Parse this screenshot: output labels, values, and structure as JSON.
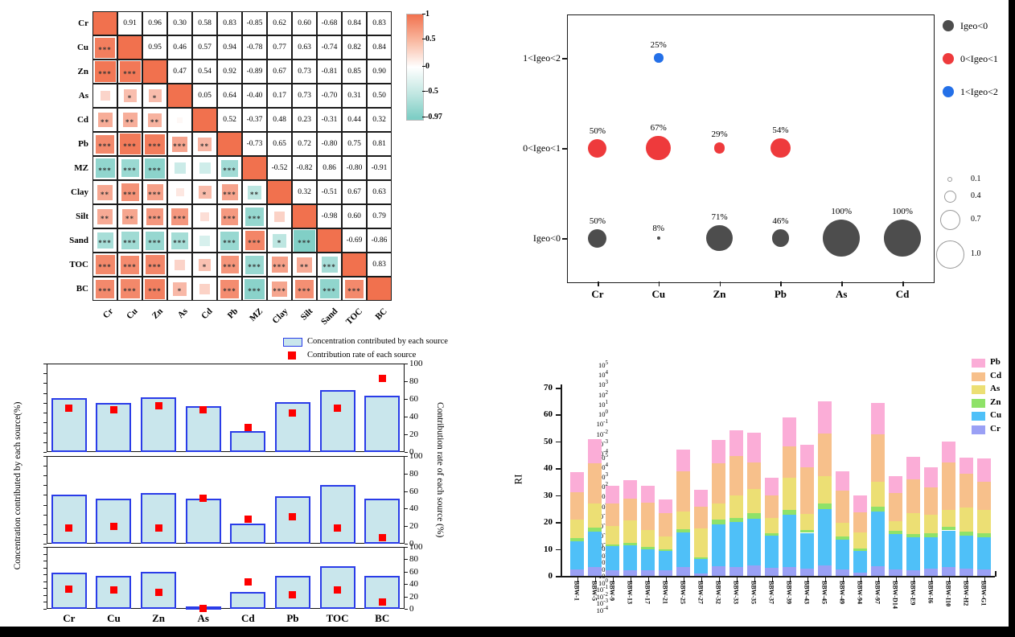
{
  "colors": {
    "positive": "#f1714e",
    "negative": "#7ecec5",
    "grid_line": "#1b1b1b",
    "bubble_gray": "#4d4d4d",
    "bubble_red": "#ee3a3c",
    "bubble_blue": "#2470e8",
    "bar_fill": "#c9e6ec",
    "bar_border": "#2a3ce8",
    "rate_marker": "#fe0000",
    "ri_Cr": "#9aa0f5",
    "ri_Cu": "#4fc0f8",
    "ri_Zn": "#8fe268",
    "ri_As": "#ecdf74",
    "ri_Cd": "#f7c08b",
    "ri_Pb": "#fbadd7"
  },
  "chart_data": [
    {
      "id": "correlation-matrix",
      "type": "heatmap",
      "labels": [
        "Cr",
        "Cu",
        "Zn",
        "As",
        "Cd",
        "Pb",
        "MZ",
        "Clay",
        "Silt",
        "Sand",
        "TOC",
        "BC"
      ],
      "r": [
        [
          1,
          0.91,
          0.96,
          0.3,
          0.58,
          0.83,
          -0.85,
          0.62,
          0.6,
          -0.68,
          0.84,
          0.83
        ],
        [
          0.91,
          1,
          0.95,
          0.46,
          0.57,
          0.94,
          -0.78,
          0.77,
          0.63,
          -0.74,
          0.82,
          0.84
        ],
        [
          0.96,
          0.95,
          1,
          0.47,
          0.54,
          0.92,
          -0.89,
          0.67,
          0.73,
          -0.81,
          0.85,
          0.9
        ],
        [
          0.3,
          0.46,
          0.47,
          1,
          0.05,
          0.64,
          -0.4,
          0.17,
          0.73,
          -0.7,
          0.31,
          0.5
        ],
        [
          0.58,
          0.57,
          0.54,
          0.05,
          1,
          0.52,
          -0.37,
          0.48,
          0.23,
          -0.31,
          0.44,
          0.32
        ],
        [
          0.83,
          0.94,
          0.92,
          0.64,
          0.52,
          1,
          -0.73,
          0.65,
          0.72,
          -0.8,
          0.75,
          0.81
        ],
        [
          -0.85,
          -0.78,
          -0.89,
          -0.4,
          -0.37,
          -0.73,
          1,
          -0.52,
          -0.82,
          0.86,
          -0.8,
          -0.91
        ],
        [
          0.62,
          0.77,
          0.67,
          0.17,
          0.48,
          0.65,
          -0.52,
          1,
          0.32,
          -0.51,
          0.67,
          0.63
        ],
        [
          0.6,
          0.63,
          0.73,
          0.73,
          0.23,
          0.72,
          -0.82,
          0.32,
          1,
          -0.98,
          0.6,
          0.79
        ],
        [
          -0.68,
          -0.74,
          -0.81,
          -0.7,
          -0.31,
          -0.8,
          0.86,
          -0.51,
          -0.98,
          1,
          -0.69,
          -0.86
        ],
        [
          0.84,
          0.82,
          0.85,
          0.31,
          0.44,
          0.75,
          -0.8,
          0.67,
          0.6,
          -0.69,
          1,
          0.83
        ],
        [
          0.83,
          0.84,
          0.9,
          0.5,
          0.32,
          0.81,
          -0.91,
          0.63,
          0.79,
          -0.86,
          0.83,
          1
        ]
      ],
      "stars": [
        [],
        [
          "***"
        ],
        [
          "***",
          "***"
        ],
        [
          "",
          "*",
          "*"
        ],
        [
          "**",
          "**",
          "**",
          ""
        ],
        [
          "***",
          "***",
          "***",
          "***",
          "**"
        ],
        [
          "***",
          "***",
          "***",
          "",
          "",
          "***"
        ],
        [
          "**",
          "***",
          "***",
          "",
          "*",
          "***",
          "**"
        ],
        [
          "**",
          "**",
          "***",
          "***",
          "",
          "***",
          "***",
          ""
        ],
        [
          "***",
          "***",
          "***",
          "***",
          "",
          "***",
          "***",
          "*",
          "***"
        ],
        [
          "***",
          "***",
          "***",
          "",
          "*",
          "***",
          "***",
          "***",
          "**",
          "***"
        ],
        [
          "***",
          "***",
          "***",
          "*",
          "",
          "***",
          "***",
          "***",
          "***",
          "***",
          "***"
        ]
      ],
      "colorbar": {
        "ticks": [
          "1",
          "0.5",
          "0",
          "-0.5",
          "-0.97"
        ],
        "positions": [
          0,
          0.236,
          0.496,
          0.733,
          0.977
        ]
      }
    },
    {
      "id": "igeo-bubble",
      "type": "scatter",
      "x_categories": [
        "Cr",
        "Cu",
        "Zn",
        "Pb",
        "As",
        "Cd"
      ],
      "y_categories": [
        "1<Igeo<2",
        "0<Igeo<1",
        "Igeo<0"
      ],
      "bubbles": [
        {
          "x": "Cu",
          "y": "1<Igeo<2",
          "pct": 25,
          "group": "blue"
        },
        {
          "x": "Cr",
          "y": "0<Igeo<1",
          "pct": 50,
          "group": "red"
        },
        {
          "x": "Cu",
          "y": "0<Igeo<1",
          "pct": 67,
          "group": "red"
        },
        {
          "x": "Zn",
          "y": "0<Igeo<1",
          "pct": 29,
          "group": "red"
        },
        {
          "x": "Pb",
          "y": "0<Igeo<1",
          "pct": 54,
          "group": "red"
        },
        {
          "x": "Cr",
          "y": "Igeo<0",
          "pct": 50,
          "group": "gray"
        },
        {
          "x": "Cu",
          "y": "Igeo<0",
          "pct": 8,
          "group": "gray"
        },
        {
          "x": "Zn",
          "y": "Igeo<0",
          "pct": 71,
          "group": "gray"
        },
        {
          "x": "Pb",
          "y": "Igeo<0",
          "pct": 46,
          "group": "gray"
        },
        {
          "x": "As",
          "y": "Igeo<0",
          "pct": 100,
          "group": "gray"
        },
        {
          "x": "Cd",
          "y": "Igeo<0",
          "pct": 100,
          "group": "gray"
        }
      ],
      "legend": [
        {
          "label": "Igeo<0",
          "group": "gray"
        },
        {
          "label": "0<Igeo<1",
          "group": "red"
        },
        {
          "label": "1<Igeo<2",
          "group": "blue"
        }
      ],
      "size_legend": [
        {
          "label": "0.1",
          "d": 4
        },
        {
          "label": "0.4",
          "d": 13
        },
        {
          "label": "0.7",
          "d": 23
        },
        {
          "label": "1.0",
          "d": 33
        }
      ]
    },
    {
      "id": "source-contribution",
      "type": "bar",
      "categories": [
        "Cr",
        "Cu",
        "Zn",
        "As",
        "Cd",
        "Pb",
        "TOC",
        "BC"
      ],
      "legend": [
        "Concentration contributed by each source",
        "Contribution rate of each source"
      ],
      "ylabel_left": "Concentration contributed by each source(%)",
      "ylabel_right": "Contribution rate of each source (%)",
      "y_ticks_left_exponents": [
        5,
        4,
        3,
        2,
        1,
        0,
        -1,
        -2,
        -3,
        -4
      ],
      "y_ticks_right": [
        100,
        80,
        60,
        40,
        20,
        0
      ],
      "sources": [
        {
          "bars_log10": [
            1.5,
            1.0,
            1.6,
            0.7,
            -1.9,
            1.05,
            2.3,
            1.75
          ],
          "rates_pct": [
            50,
            48,
            52,
            48,
            28,
            44,
            50,
            83
          ]
        },
        {
          "bars_log10": [
            1.0,
            0.6,
            1.2,
            0.65,
            -1.9,
            0.9,
            2.0,
            0.6
          ],
          "rates_pct": [
            18,
            20,
            18,
            52,
            28,
            31,
            18,
            7
          ]
        },
        {
          "bars_log10": [
            1.3,
            0.75,
            1.35,
            -3.6,
            -1.5,
            0.8,
            2.25,
            0.75
          ],
          "rates_pct": [
            32,
            30,
            27,
            1,
            43,
            23,
            30,
            11
          ]
        }
      ]
    },
    {
      "id": "ri-stacked",
      "type": "bar",
      "ylabel": "RI",
      "ylim": [
        0,
        70
      ],
      "y_ticks": [
        0,
        10,
        20,
        30,
        40,
        50,
        60,
        70
      ],
      "categories": [
        "BBW-1",
        "BBW-5",
        "BBW-9",
        "BBW-13",
        "BBW-17",
        "BBW-21",
        "BBW-25",
        "BBW-27",
        "BBW-32",
        "BBW-33",
        "BBW-35",
        "BBW-37",
        "BBW-39",
        "BBW-43",
        "BBW-45",
        "BBW-49",
        "BBW-94",
        "BBW-97",
        "BBW-D14",
        "BBW-E9",
        "BBW-I6",
        "BBW-I10",
        "BBW-H2",
        "BBW-G1"
      ],
      "series": [
        {
          "name": "Cr",
          "values": [
            2.3,
            3.2,
            2.0,
            2.2,
            2.0,
            2.0,
            3.2,
            0.8,
            3.5,
            3.4,
            4.0,
            3.0,
            3.3,
            2.8,
            3.9,
            2.4,
            1.3,
            3.6,
            2.5,
            2.2,
            2.7,
            3.3,
            2.8,
            2.4
          ]
        },
        {
          "name": "Cu",
          "values": [
            10.7,
            13.3,
            9.0,
            9.3,
            8.0,
            7.2,
            13.0,
            5.5,
            15.7,
            16.6,
            17.3,
            12.0,
            19.5,
            13.2,
            21.0,
            11.2,
            8.1,
            20.3,
            13.1,
            12.2,
            11.6,
            13.6,
            12.3,
            12.0
          ]
        },
        {
          "name": "Zn",
          "values": [
            1.0,
            1.5,
            0.8,
            0.8,
            0.8,
            0.8,
            1.1,
            0.7,
            1.6,
            1.6,
            2.0,
            1.0,
            1.7,
            1.0,
            2.1,
            1.0,
            0.9,
            1.9,
            1.2,
            1.2,
            1.5,
            1.4,
            1.4,
            1.5
          ]
        },
        {
          "name": "As",
          "values": [
            7.0,
            9.0,
            6.7,
            8.2,
            6.2,
            4.8,
            6.7,
            10.5,
            6.0,
            8.4,
            9.0,
            5.5,
            12.0,
            6.0,
            10.0,
            5.2,
            5.9,
            9.2,
            3.6,
            7.6,
            6.8,
            6.2,
            9.0,
            8.7
          ]
        },
        {
          "name": "Cd",
          "values": [
            10.0,
            15.0,
            8.5,
            8.1,
            10.3,
            8.4,
            15.0,
            8.3,
            15.0,
            14.5,
            9.9,
            8.3,
            11.8,
            17.5,
            16.0,
            12.0,
            7.4,
            17.7,
            10.3,
            12.6,
            10.3,
            17.7,
            12.5,
            10.5
          ]
        },
        {
          "name": "Pb",
          "values": [
            7.5,
            8.8,
            6.4,
            6.9,
            6.1,
            5.1,
            8.0,
            6.2,
            8.7,
            9.5,
            11.0,
            6.8,
            10.7,
            8.4,
            11.8,
            7.2,
            6.4,
            11.6,
            6.5,
            8.4,
            7.4,
            7.9,
            6.1,
            8.6
          ]
        }
      ],
      "legend_order": [
        "Pb",
        "Cd",
        "As",
        "Zn",
        "Cu",
        "Cr"
      ]
    }
  ]
}
